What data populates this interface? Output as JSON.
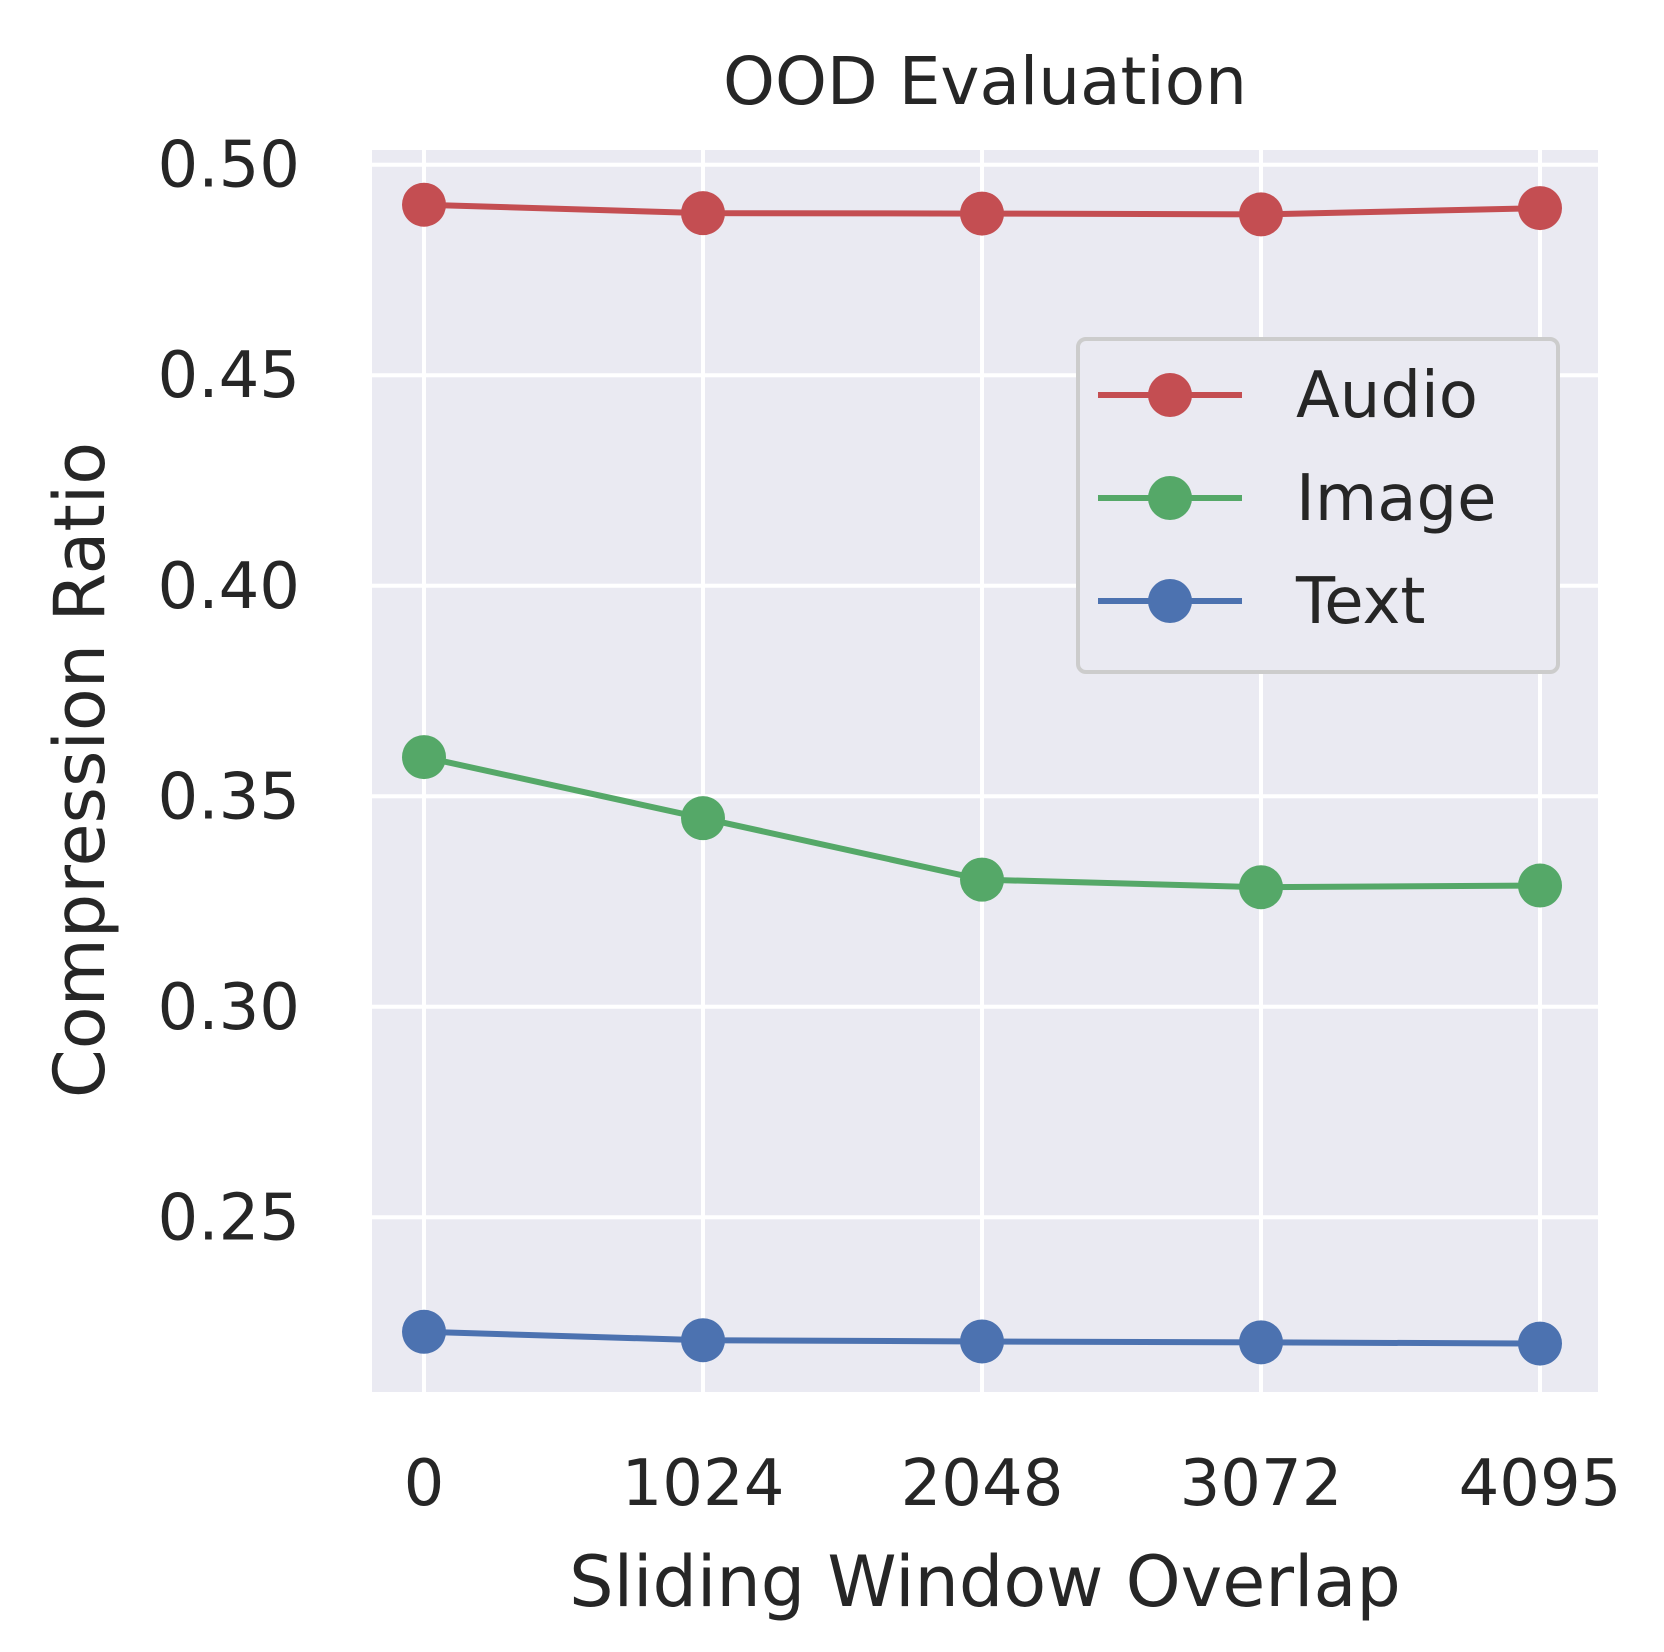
{
  "chart_data": {
    "type": "line",
    "title": "OOD Evaluation",
    "xlabel": "Sliding Window Overlap",
    "ylabel": "Compression Ratio",
    "categories": [
      "0",
      "1024",
      "2048",
      "3072",
      "4095"
    ],
    "x": [
      0,
      1024,
      2048,
      3072,
      4095
    ],
    "ylim": [
      0.2085,
      0.5035
    ],
    "yticks": [
      0.25,
      0.3,
      0.35,
      0.4,
      0.45,
      0.5
    ],
    "ytick_labels": [
      "0.25",
      "0.30",
      "0.35",
      "0.40",
      "0.45",
      "0.50"
    ],
    "grid": true,
    "legend_position": "upper right",
    "series": [
      {
        "name": "Audio",
        "color": "#c44e52",
        "values": [
          0.4905,
          0.4885,
          0.4884,
          0.4882,
          0.4897
        ]
      },
      {
        "name": "Image",
        "color": "#55a868",
        "values": [
          0.3593,
          0.3448,
          0.3302,
          0.3284,
          0.3288
        ]
      },
      {
        "name": "Text",
        "color": "#4c72b0",
        "values": [
          0.2228,
          0.2208,
          0.2205,
          0.2203,
          0.22
        ]
      }
    ]
  }
}
